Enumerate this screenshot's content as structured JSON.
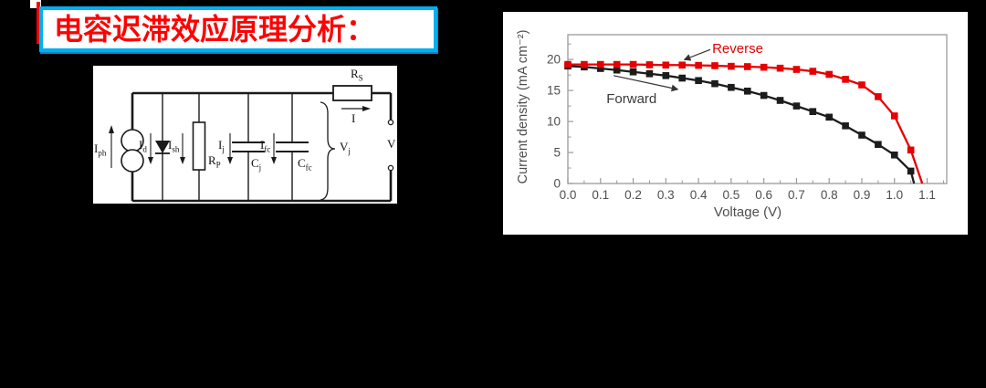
{
  "title": {
    "text": "电容迟滞效应原理分析：",
    "color": "#ff0000",
    "border_color": "#00b0f0",
    "background": "#ffffff"
  },
  "circuit": {
    "description": "solar-cell equivalent circuit with junction and slow capacitances",
    "line_color": "#1a1a1a",
    "labels": [
      {
        "base": "I",
        "sub": "ph"
      },
      {
        "base": "I",
        "sub": "d"
      },
      {
        "base": "I",
        "sub": "sh"
      },
      {
        "base": "R",
        "sub": "P"
      },
      {
        "base": "I",
        "sub": "j"
      },
      {
        "base": "C",
        "sub": "j"
      },
      {
        "base": "I",
        "sub": "fc"
      },
      {
        "base": "C",
        "sub": "fc"
      },
      {
        "base": "V",
        "sub": "j"
      },
      {
        "base": "R",
        "sub": "S"
      },
      {
        "base": "I",
        "sub": ""
      },
      {
        "base": "V",
        "sub": ""
      }
    ]
  },
  "chart_data": {
    "type": "line",
    "xlabel": "Voltage (V)",
    "ylabel": "Current density (mA cm⁻²)",
    "xlim": [
      0,
      1.16
    ],
    "ylim": [
      0,
      24
    ],
    "x_major_ticks": [
      0.0,
      0.1,
      0.2,
      0.3,
      0.4,
      0.5,
      0.6,
      0.7,
      0.8,
      0.9,
      1.0,
      1.1
    ],
    "y_major_ticks": [
      0,
      5,
      10,
      15,
      20
    ],
    "x_minor_step": 0.05,
    "y_minor_step": 2.5,
    "grid": false,
    "legend": "inline-annotations",
    "axis_color": "#9a9a9a",
    "tick_label_color": "#4e4e4e",
    "series": [
      {
        "name": "Forward",
        "color": "#1c1c1c",
        "marker": "square",
        "x": [
          0.0,
          0.05,
          0.1,
          0.15,
          0.2,
          0.25,
          0.3,
          0.35,
          0.4,
          0.45,
          0.5,
          0.55,
          0.6,
          0.65,
          0.7,
          0.75,
          0.8,
          0.85,
          0.9,
          0.95,
          1.0,
          1.05,
          1.06
        ],
        "values": [
          18.95,
          18.8,
          18.55,
          18.3,
          18.0,
          17.7,
          17.4,
          17.0,
          16.6,
          16.1,
          15.5,
          14.9,
          14.2,
          13.4,
          12.5,
          11.6,
          10.7,
          9.3,
          7.8,
          6.3,
          4.6,
          2.0,
          0
        ]
      },
      {
        "name": "Reverse",
        "color": "#e60000",
        "marker": "square",
        "x": [
          0.0,
          0.05,
          0.1,
          0.15,
          0.2,
          0.25,
          0.3,
          0.35,
          0.4,
          0.45,
          0.5,
          0.55,
          0.6,
          0.65,
          0.7,
          0.75,
          0.8,
          0.85,
          0.9,
          0.95,
          1.0,
          1.05,
          1.085
        ],
        "values": [
          19.2,
          19.2,
          19.2,
          19.2,
          19.2,
          19.15,
          19.1,
          19.1,
          19.05,
          19.0,
          18.9,
          18.85,
          18.75,
          18.6,
          18.4,
          18.1,
          17.6,
          16.8,
          15.9,
          14.0,
          10.9,
          5.4,
          0
        ]
      }
    ],
    "annotations": [
      {
        "text": "Reverse",
        "color": "#e60000",
        "text_x": 0.52,
        "text_y": 21.8,
        "arrow_from": [
          0.436,
          21.6
        ],
        "arrow_to": [
          0.358,
          20.0
        ],
        "arrow_color": "#333333"
      },
      {
        "text": "Forward",
        "color": "#3a3a3a",
        "text_x": 0.195,
        "text_y": 13.7,
        "arrow_from": [
          0.14,
          17.4
        ],
        "arrow_to": [
          0.335,
          15.2
        ],
        "arrow_color": "#333333"
      }
    ]
  }
}
